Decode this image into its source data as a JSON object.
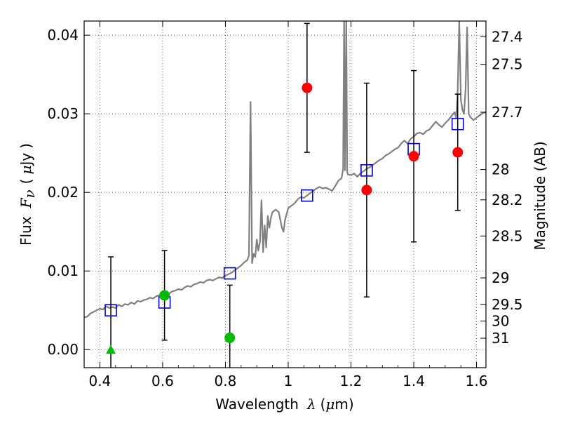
{
  "chart_data": {
    "type": "scatter",
    "xlabel": "Wavelength",
    "xlabel_symbol": "λ",
    "xlabel_unit_open": "(",
    "xlabel_unit_mu": "μ",
    "xlabel_unit_rest": "m)",
    "ylabel": "Flux",
    "ylabel_symbol": "F",
    "ylabel_subscript": "ν",
    "ylabel_unit_open": "(",
    "ylabel_unit_mu": "μ",
    "ylabel_unit_rest": "Jy",
    "ylabel_unit_close": ")",
    "y2label": "Magnitude (AB)",
    "xlim": [
      0.35,
      1.63
    ],
    "ylim": [
      -0.0023,
      0.0418
    ],
    "grid": true,
    "xticks": [
      {
        "value": 0.4,
        "label": "0.4"
      },
      {
        "value": 0.6,
        "label": "0.6"
      },
      {
        "value": 0.8,
        "label": "0.8"
      },
      {
        "value": 1.0,
        "label": "1"
      },
      {
        "value": 1.2,
        "label": "1.2"
      },
      {
        "value": 1.4,
        "label": "1.4"
      },
      {
        "value": 1.6,
        "label": "1.6"
      }
    ],
    "yticks": [
      {
        "value": 0.0,
        "label": "0.00"
      },
      {
        "value": 0.01,
        "label": "0.01"
      },
      {
        "value": 0.02,
        "label": "0.02"
      },
      {
        "value": 0.03,
        "label": "0.03"
      },
      {
        "value": 0.04,
        "label": "0.04"
      }
    ],
    "magnitude_ticks": [
      "27.4",
      "27.5",
      "27.7",
      "28",
      "28.2",
      "28.5",
      "29",
      "29.5",
      "30",
      "31"
    ],
    "template_spectrum": [
      [
        0.35,
        0.0041
      ],
      [
        0.36,
        0.0042
      ],
      [
        0.37,
        0.0046
      ],
      [
        0.38,
        0.0048
      ],
      [
        0.39,
        0.005
      ],
      [
        0.4,
        0.0052
      ],
      [
        0.41,
        0.0051
      ],
      [
        0.42,
        0.0055
      ],
      [
        0.43,
        0.0053
      ],
      [
        0.44,
        0.0054
      ],
      [
        0.45,
        0.0053
      ],
      [
        0.46,
        0.0057
      ],
      [
        0.47,
        0.0055
      ],
      [
        0.48,
        0.0058
      ],
      [
        0.49,
        0.0057
      ],
      [
        0.5,
        0.006
      ],
      [
        0.51,
        0.0058
      ],
      [
        0.52,
        0.0062
      ],
      [
        0.53,
        0.0061
      ],
      [
        0.54,
        0.0063
      ],
      [
        0.55,
        0.0064
      ],
      [
        0.56,
        0.0066
      ],
      [
        0.57,
        0.0065
      ],
      [
        0.58,
        0.0068
      ],
      [
        0.59,
        0.0069
      ],
      [
        0.6,
        0.007
      ],
      [
        0.61,
        0.0072
      ],
      [
        0.62,
        0.0071
      ],
      [
        0.63,
        0.0074
      ],
      [
        0.64,
        0.0075
      ],
      [
        0.65,
        0.0077
      ],
      [
        0.66,
        0.0076
      ],
      [
        0.67,
        0.0079
      ],
      [
        0.68,
        0.0081
      ],
      [
        0.69,
        0.008
      ],
      [
        0.7,
        0.0083
      ],
      [
        0.71,
        0.0084
      ],
      [
        0.72,
        0.0086
      ],
      [
        0.73,
        0.0085
      ],
      [
        0.74,
        0.0088
      ],
      [
        0.75,
        0.0089
      ],
      [
        0.76,
        0.0088
      ],
      [
        0.77,
        0.009
      ],
      [
        0.78,
        0.0092
      ],
      [
        0.79,
        0.0091
      ],
      [
        0.8,
        0.0094
      ],
      [
        0.81,
        0.0096
      ],
      [
        0.82,
        0.0098
      ],
      [
        0.83,
        0.0101
      ],
      [
        0.84,
        0.0104
      ],
      [
        0.85,
        0.0107
      ],
      [
        0.86,
        0.0111
      ],
      [
        0.87,
        0.0114
      ],
      [
        0.875,
        0.012
      ],
      [
        0.88,
        0.0315
      ],
      [
        0.885,
        0.011
      ],
      [
        0.89,
        0.0122
      ],
      [
        0.895,
        0.0118
      ],
      [
        0.9,
        0.014
      ],
      [
        0.905,
        0.0126
      ],
      [
        0.91,
        0.0137
      ],
      [
        0.915,
        0.019
      ],
      [
        0.92,
        0.0124
      ],
      [
        0.925,
        0.0158
      ],
      [
        0.93,
        0.013
      ],
      [
        0.935,
        0.017
      ],
      [
        0.94,
        0.0155
      ],
      [
        0.945,
        0.0168
      ],
      [
        0.95,
        0.0175
      ],
      [
        0.96,
        0.0178
      ],
      [
        0.97,
        0.0175
      ],
      [
        0.98,
        0.0155
      ],
      [
        0.985,
        0.015
      ],
      [
        0.99,
        0.0165
      ],
      [
        1.0,
        0.018
      ],
      [
        1.01,
        0.0183
      ],
      [
        1.02,
        0.0186
      ],
      [
        1.03,
        0.0191
      ],
      [
        1.04,
        0.0194
      ],
      [
        1.05,
        0.0193
      ],
      [
        1.06,
        0.0196
      ],
      [
        1.07,
        0.0199
      ],
      [
        1.08,
        0.0202
      ],
      [
        1.09,
        0.0205
      ],
      [
        1.1,
        0.0207
      ],
      [
        1.11,
        0.0205
      ],
      [
        1.12,
        0.0206
      ],
      [
        1.13,
        0.0204
      ],
      [
        1.14,
        0.0202
      ],
      [
        1.15,
        0.0208
      ],
      [
        1.16,
        0.0215
      ],
      [
        1.17,
        0.0218
      ],
      [
        1.175,
        0.023
      ],
      [
        1.178,
        0.0418
      ],
      [
        1.181,
        0.0228
      ],
      [
        1.185,
        0.0418
      ],
      [
        1.188,
        0.0226
      ],
      [
        1.19,
        0.0223
      ],
      [
        1.2,
        0.0222
      ],
      [
        1.21,
        0.0224
      ],
      [
        1.22,
        0.022
      ],
      [
        1.23,
        0.0224
      ],
      [
        1.24,
        0.0227
      ],
      [
        1.25,
        0.023
      ],
      [
        1.26,
        0.0232
      ],
      [
        1.27,
        0.0235
      ],
      [
        1.28,
        0.0238
      ],
      [
        1.29,
        0.0241
      ],
      [
        1.3,
        0.0243
      ],
      [
        1.31,
        0.0247
      ],
      [
        1.32,
        0.0249
      ],
      [
        1.33,
        0.0252
      ],
      [
        1.34,
        0.0255
      ],
      [
        1.35,
        0.0257
      ],
      [
        1.36,
        0.0262
      ],
      [
        1.37,
        0.0266
      ],
      [
        1.38,
        0.0262
      ],
      [
        1.39,
        0.0268
      ],
      [
        1.4,
        0.0271
      ],
      [
        1.41,
        0.0275
      ],
      [
        1.42,
        0.0276
      ],
      [
        1.43,
        0.0274
      ],
      [
        1.44,
        0.0278
      ],
      [
        1.45,
        0.028
      ],
      [
        1.46,
        0.0285
      ],
      [
        1.47,
        0.029
      ],
      [
        1.48,
        0.0286
      ],
      [
        1.49,
        0.0283
      ],
      [
        1.5,
        0.0288
      ],
      [
        1.51,
        0.0292
      ],
      [
        1.52,
        0.0297
      ],
      [
        1.53,
        0.0302
      ],
      [
        1.535,
        0.0295
      ],
      [
        1.54,
        0.033
      ],
      [
        1.545,
        0.0418
      ],
      [
        1.55,
        0.0318
      ],
      [
        1.555,
        0.0305
      ],
      [
        1.56,
        0.03
      ],
      [
        1.565,
        0.033
      ],
      [
        1.57,
        0.041
      ],
      [
        1.575,
        0.03
      ],
      [
        1.58,
        0.0296
      ],
      [
        1.59,
        0.0292
      ],
      [
        1.6,
        0.0295
      ],
      [
        1.61,
        0.0298
      ],
      [
        1.62,
        0.0301
      ],
      [
        1.63,
        0.0302
      ]
    ],
    "model_photometry": [
      {
        "x": 0.435,
        "y": 0.005
      },
      {
        "x": 0.606,
        "y": 0.006
      },
      {
        "x": 0.814,
        "y": 0.0097
      },
      {
        "x": 1.06,
        "y": 0.0196
      },
      {
        "x": 1.25,
        "y": 0.0228
      },
      {
        "x": 1.4,
        "y": 0.0255
      },
      {
        "x": 1.54,
        "y": 0.0287
      }
    ],
    "observed_optical": [
      {
        "x": 0.435,
        "y": 0.0,
        "err": 0.0118,
        "marker": "triangle"
      },
      {
        "x": 0.606,
        "y": 0.0069,
        "err": 0.0057,
        "marker": "circle"
      },
      {
        "x": 0.814,
        "y": 0.0015,
        "err": 0.0067,
        "marker": "circle"
      }
    ],
    "observed_nir": [
      {
        "x": 1.06,
        "y": 0.0333,
        "err": 0.0082
      },
      {
        "x": 1.25,
        "y": 0.0203,
        "err": 0.0136
      },
      {
        "x": 1.4,
        "y": 0.0246,
        "err": 0.0109
      },
      {
        "x": 1.54,
        "y": 0.0251,
        "err": 0.0074
      }
    ],
    "colors": {
      "spectrum": "#808080",
      "model": "#0000cc",
      "optical": "#00bb00",
      "nir": "#ff0000",
      "errorbar": "#000000"
    }
  }
}
